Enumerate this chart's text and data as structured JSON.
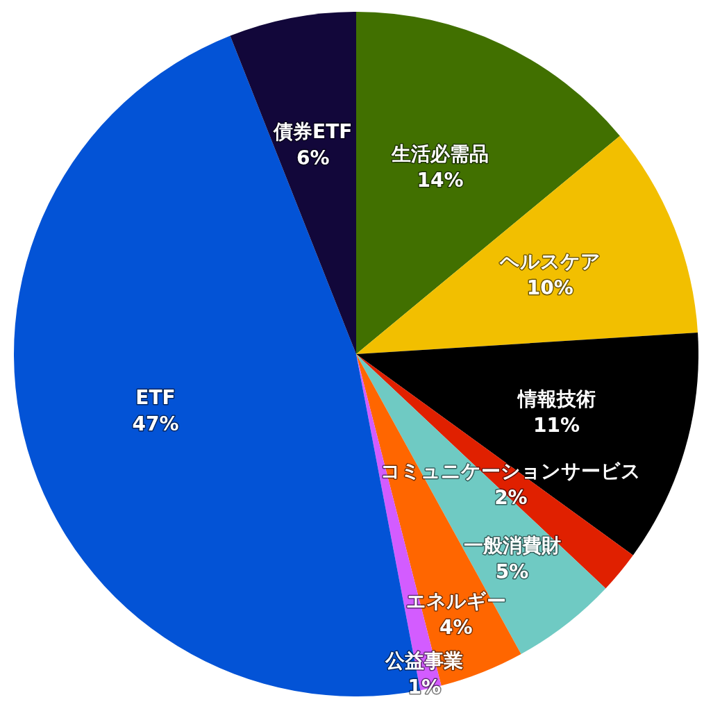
{
  "chart_data": {
    "type": "pie",
    "categories": [
      "生活必需品",
      "ヘルスケア",
      "情報技術",
      "コミュニケーションサービス",
      "一般消費財",
      "エネルギー",
      "公益事業",
      "ETF",
      "債券ETF"
    ],
    "values": [
      14,
      10,
      11,
      2,
      5,
      4,
      1,
      47,
      6
    ],
    "value_labels": [
      "14%",
      "10%",
      "11%",
      "2%",
      "5%",
      "4%",
      "1%",
      "47%",
      "6%"
    ],
    "colors": [
      "#417000",
      "#f2bf00",
      "#000000",
      "#e02000",
      "#6fcac3",
      "#ff6600",
      "#d35cff",
      "#0353d6",
      "#12073a"
    ],
    "legend": false
  }
}
